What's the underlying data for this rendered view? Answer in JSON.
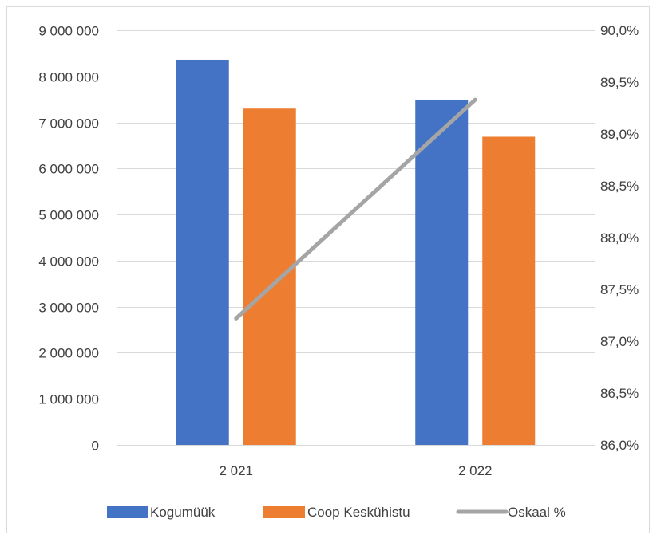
{
  "chart_data": {
    "type": "bar",
    "categories": [
      "2 021",
      "2 022"
    ],
    "series": [
      {
        "name": "Kogumüük",
        "kind": "bar",
        "axis": "left",
        "color": "#4472C4",
        "values": [
          8360000,
          7490000
        ]
      },
      {
        "name": "Coop Keskühistu",
        "kind": "bar",
        "axis": "left",
        "color": "#ED7D31",
        "values": [
          7300000,
          6690000
        ]
      },
      {
        "name": "Oskaal %",
        "kind": "line",
        "axis": "right",
        "color": "#A5A5A5",
        "values": [
          87.22,
          89.33
        ]
      }
    ],
    "left_axis": {
      "ylim": [
        0,
        9000000
      ],
      "ticks": [
        {
          "value": 0,
          "label": "0"
        },
        {
          "value": 1000000,
          "label": "1 000 000"
        },
        {
          "value": 2000000,
          "label": "2 000 000"
        },
        {
          "value": 3000000,
          "label": "3 000 000"
        },
        {
          "value": 4000000,
          "label": "4 000 000"
        },
        {
          "value": 5000000,
          "label": "5 000 000"
        },
        {
          "value": 6000000,
          "label": "6 000 000"
        },
        {
          "value": 7000000,
          "label": "7 000 000"
        },
        {
          "value": 8000000,
          "label": "8 000 000"
        },
        {
          "value": 9000000,
          "label": "9 000 000"
        }
      ]
    },
    "right_axis": {
      "ylim": [
        86.0,
        90.0
      ],
      "ticks": [
        {
          "value": 86.0,
          "label": "86,0%"
        },
        {
          "value": 86.5,
          "label": "86,5%"
        },
        {
          "value": 87.0,
          "label": "87,0%"
        },
        {
          "value": 87.5,
          "label": "87,5%"
        },
        {
          "value": 88.0,
          "label": "88,0%"
        },
        {
          "value": 88.5,
          "label": "88,5%"
        },
        {
          "value": 89.0,
          "label": "89,0%"
        },
        {
          "value": 89.5,
          "label": "89,5%"
        },
        {
          "value": 90.0,
          "label": "90,0%"
        }
      ]
    },
    "grid": true,
    "legend": "bottom"
  }
}
